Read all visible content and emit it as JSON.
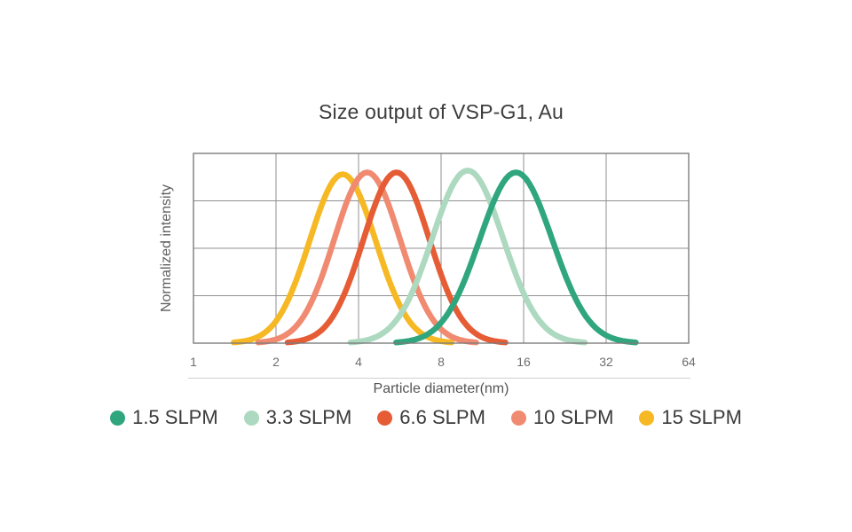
{
  "page": {
    "background": "#ffffff"
  },
  "chart_data": {
    "type": "line",
    "title": "Size output of VSP-G1, Au",
    "xlabel": "Particle diameter(nm)",
    "ylabel": "Normalized intensity",
    "x_scale": "log2",
    "x_ticks": [
      1,
      2,
      4,
      8,
      16,
      32,
      64
    ],
    "xlim": [
      1,
      64
    ],
    "ylim": [
      0,
      1
    ],
    "y_gridline_divisions": 4,
    "grid": true,
    "legend_position": "bottom",
    "curve_shape": "lognormal (gaussian in log2 space)",
    "series": [
      {
        "name": "1.5 SLPM",
        "color": "#2FA67E",
        "peak_diameter_nm": 15,
        "sigma_log2": 0.44,
        "peak_intensity": 0.9
      },
      {
        "name": "3.3 SLPM",
        "color": "#ACD9BF",
        "peak_diameter_nm": 10,
        "sigma_log2": 0.43,
        "peak_intensity": 0.91
      },
      {
        "name": "6.6 SLPM",
        "color": "#E55C35",
        "peak_diameter_nm": 5.5,
        "sigma_log2": 0.4,
        "peak_intensity": 0.9
      },
      {
        "name": "10 SLPM",
        "color": "#F08A70",
        "peak_diameter_nm": 4.3,
        "sigma_log2": 0.4,
        "peak_intensity": 0.9
      },
      {
        "name": "15 SLPM",
        "color": "#F6B823",
        "peak_diameter_nm": 3.5,
        "sigma_log2": 0.4,
        "peak_intensity": 0.89
      }
    ],
    "colors": {
      "plot_border": "#7d7d7d",
      "gridline": "#8f8f8f",
      "tick_underline": "#cfcfcf",
      "title_text": "#3d3d3d",
      "axis_label_text": "#5f5f5f",
      "tick_label_text": "#6e6e6e",
      "legend_text": "#3a3a3a"
    }
  }
}
